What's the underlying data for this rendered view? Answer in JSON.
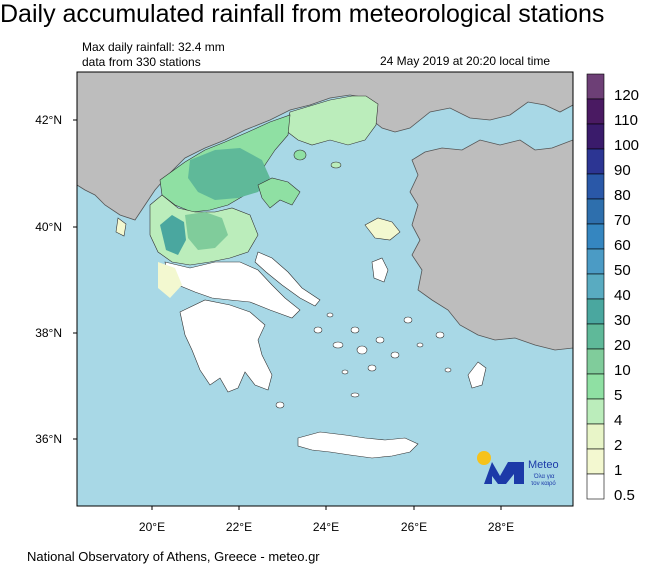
{
  "title": "Daily accumulated rainfall from meteorological stations",
  "info": {
    "max_rainfall": "Max daily rainfall: 32.4 mm",
    "stations": "data from 330 stations",
    "datetime": "24 May 2019 at 20:20 local time"
  },
  "axes": {
    "lat_labels": [
      "42°N",
      "40°N",
      "38°N",
      "36°N"
    ],
    "lon_labels": [
      "20°E",
      "22°E",
      "24°E",
      "26°E",
      "28°E"
    ]
  },
  "legend": {
    "levels": [
      "120",
      "110",
      "100",
      "90",
      "80",
      "70",
      "60",
      "50",
      "40",
      "30",
      "20",
      "10",
      "5",
      "4",
      "2",
      "1",
      "0.5"
    ],
    "colors": [
      "#6d3f76",
      "#4a1a62",
      "#3a1b6b",
      "#2c3593",
      "#2a58a8",
      "#2e6fad",
      "#3586c0",
      "#4b9bc5",
      "#59abc1",
      "#4aa79f",
      "#5fb999",
      "#80cc9b",
      "#8fe0a3",
      "#bbedbb",
      "#e8f5c8",
      "#f3f8d0",
      "#ffffff"
    ]
  },
  "logo": {
    "name": "Meteo",
    "tagline_1": "Όλα για",
    "tagline_2": "τον καιρό"
  },
  "footer": "National Observatory of Athens, Greece - meteo.gr",
  "colors": {
    "sea": "#a8d8e6",
    "land_outside": "#bdbdbd",
    "no_rain": "#ffffff",
    "logo_blue": "#1c3aa8",
    "logo_sun": "#f6c21b"
  }
}
